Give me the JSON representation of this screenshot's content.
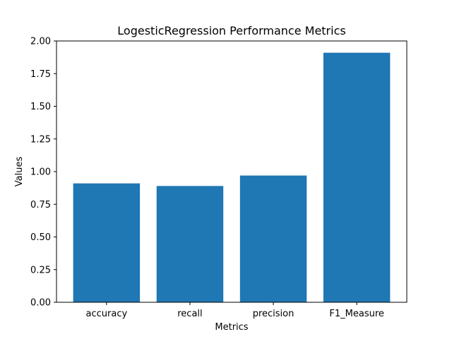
{
  "chart_data": {
    "type": "bar",
    "title": "LogesticRegression Performance Metrics",
    "xlabel": "Metrics",
    "ylabel": "Values",
    "categories": [
      "accuracy",
      "recall",
      "precision",
      "F1_Measure"
    ],
    "values": [
      0.91,
      0.89,
      0.97,
      1.91
    ],
    "ylim": [
      0,
      2.0
    ],
    "yticks": [
      "0.00",
      "0.25",
      "0.50",
      "0.75",
      "1.00",
      "1.25",
      "1.50",
      "1.75",
      "2.00"
    ],
    "bar_color": "#1f77b4",
    "grid": false,
    "legend": "none"
  }
}
